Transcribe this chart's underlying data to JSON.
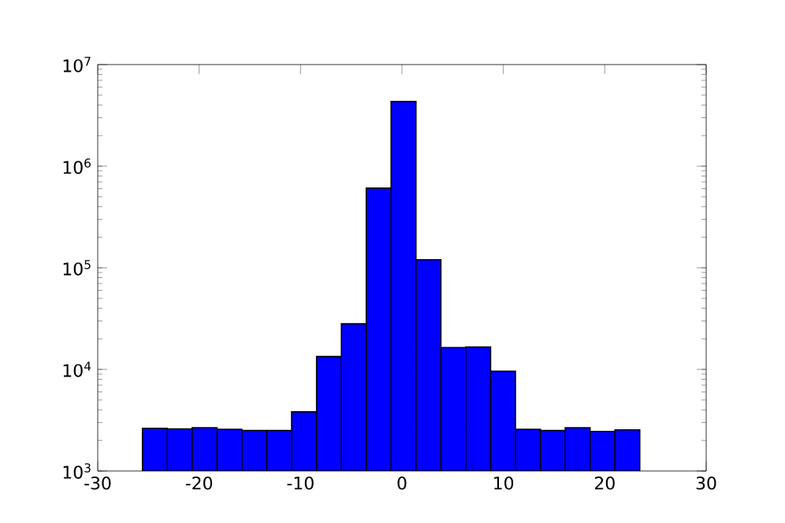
{
  "chart_data": {
    "type": "histogram",
    "color": "#0000ff",
    "bins": [
      -25.59,
      -23.14,
      -20.69,
      -18.23,
      -15.78,
      -13.33,
      -10.88,
      -8.42,
      -5.97,
      -3.52,
      -1.07,
      1.38,
      3.84,
      6.29,
      8.74,
      11.19,
      13.65,
      16.1,
      18.55,
      21.0,
      23.45
    ],
    "values": [
      2630,
      2600,
      2670,
      2570,
      2510,
      2510,
      3820,
      13400,
      28100,
      608000,
      4330000,
      120000,
      16400,
      16600,
      9600,
      2570,
      2510,
      2670,
      2450,
      2540
    ],
    "log": "y",
    "xlim": [
      -30,
      30
    ],
    "xticks": [
      -30,
      -20,
      -10,
      0,
      10,
      20,
      30
    ],
    "ylim": [
      1000,
      10000000
    ],
    "yticks": [
      {
        "value": 1000,
        "label": "10$^{3}$"
      },
      {
        "value": 10000,
        "label": "10$^{4}$"
      },
      {
        "value": 100000,
        "label": "10$^{5}$"
      },
      {
        "value": 1000000,
        "label": "10$^{6}$"
      },
      {
        "value": 10000000,
        "label": "10$^{7}$"
      }
    ]
  }
}
